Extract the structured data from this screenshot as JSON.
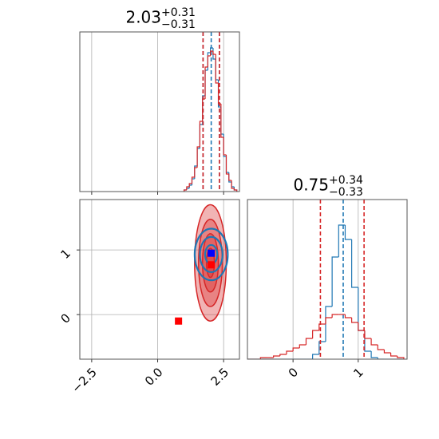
{
  "chart_data": [
    {
      "type": "histogram",
      "title": {
        "value": "2.03",
        "upper": "+0.31",
        "lower": "−0.31"
      },
      "bins": [
        1.0,
        1.1,
        1.2,
        1.3,
        1.4,
        1.5,
        1.6,
        1.7,
        1.8,
        1.9,
        2.0,
        2.1,
        2.2,
        2.3,
        2.4,
        2.5,
        2.6,
        2.7,
        2.8,
        2.9,
        3.0
      ],
      "series": [
        {
          "color": "#1f77b4",
          "values": [
            1,
            2,
            4,
            8,
            16,
            27,
            42,
            60,
            76,
            87,
            90,
            83,
            70,
            53,
            36,
            22,
            12,
            6,
            3,
            1
          ],
          "quantiles": [
            1.72,
            2.03,
            2.34
          ]
        },
        {
          "color": "#d62728",
          "values": [
            1,
            3,
            5,
            9,
            15,
            28,
            44,
            58,
            78,
            85,
            88,
            86,
            68,
            55,
            34,
            23,
            11,
            7,
            2,
            1
          ],
          "quantiles": [
            1.72,
            2.34
          ]
        }
      ],
      "xlim": [
        -2.95,
        3.1
      ],
      "ylim": [
        0,
        100
      ],
      "xticks": [
        -2.5,
        0,
        2.5
      ],
      "grid": true
    },
    {
      "type": "density2d",
      "densities": [
        {
          "color": "#d62728",
          "filled": true,
          "center": [
            2.0,
            0.8
          ],
          "sigma": [
            0.3,
            0.45
          ],
          "levels": [
            0.5,
            1,
            1.5,
            2
          ]
        },
        {
          "color": "#1f77b4",
          "filled": false,
          "center": [
            2.03,
            0.93
          ],
          "sigma": [
            0.33,
            0.21
          ],
          "levels": [
            0.7,
            1.3,
            1.9
          ]
        }
      ],
      "markers": [
        {
          "color": "#0000ff",
          "x": 2.03,
          "y": 0.95
        },
        {
          "color": "#ff0000",
          "x": 2.03,
          "y": 0.77
        },
        {
          "color": "#ff0000",
          "x": 0.79,
          "y": -0.1
        }
      ],
      "xlim": [
        -2.95,
        3.1
      ],
      "ylim": [
        -0.69,
        1.78
      ],
      "xticks": [
        {
          "value": -2.5,
          "label": "−2.5"
        },
        {
          "value": 0,
          "label": "0.0"
        },
        {
          "value": 2.5,
          "label": "2.5"
        }
      ],
      "yticks": [
        0,
        1
      ],
      "grid": true
    },
    {
      "type": "histogram",
      "title": {
        "value": "0.75",
        "upper": "+0.34",
        "lower": "−0.33"
      },
      "bins": [
        -0.7,
        -0.6,
        -0.5,
        -0.4,
        -0.3,
        -0.2,
        -0.1,
        0.0,
        0.1,
        0.2,
        0.3,
        0.4,
        0.5,
        0.6,
        0.7,
        0.8,
        0.9,
        1.0,
        1.1,
        1.2,
        1.3,
        1.4,
        1.5,
        1.6,
        1.7
      ],
      "series": [
        {
          "color": "#1f77b4",
          "values": [
            0,
            0,
            0,
            0,
            0,
            0,
            0,
            0,
            0,
            0,
            3,
            11,
            33,
            64,
            84,
            75,
            45,
            18,
            5,
            1,
            0,
            0,
            0,
            0
          ],
          "quantiles": [
            0.77
          ]
        },
        {
          "color": "#d62728",
          "values": [
            0,
            0,
            1,
            1,
            2,
            3,
            5,
            7,
            9,
            13,
            18,
            22,
            26,
            28,
            28,
            26,
            23,
            18,
            13,
            9,
            6,
            4,
            2,
            1
          ],
          "quantiles": [
            0.42,
            1.09
          ]
        }
      ],
      "xlim": [
        -0.7,
        1.75
      ],
      "ylim": [
        0,
        100
      ],
      "xticks": [
        0,
        1
      ],
      "grid": true
    }
  ]
}
